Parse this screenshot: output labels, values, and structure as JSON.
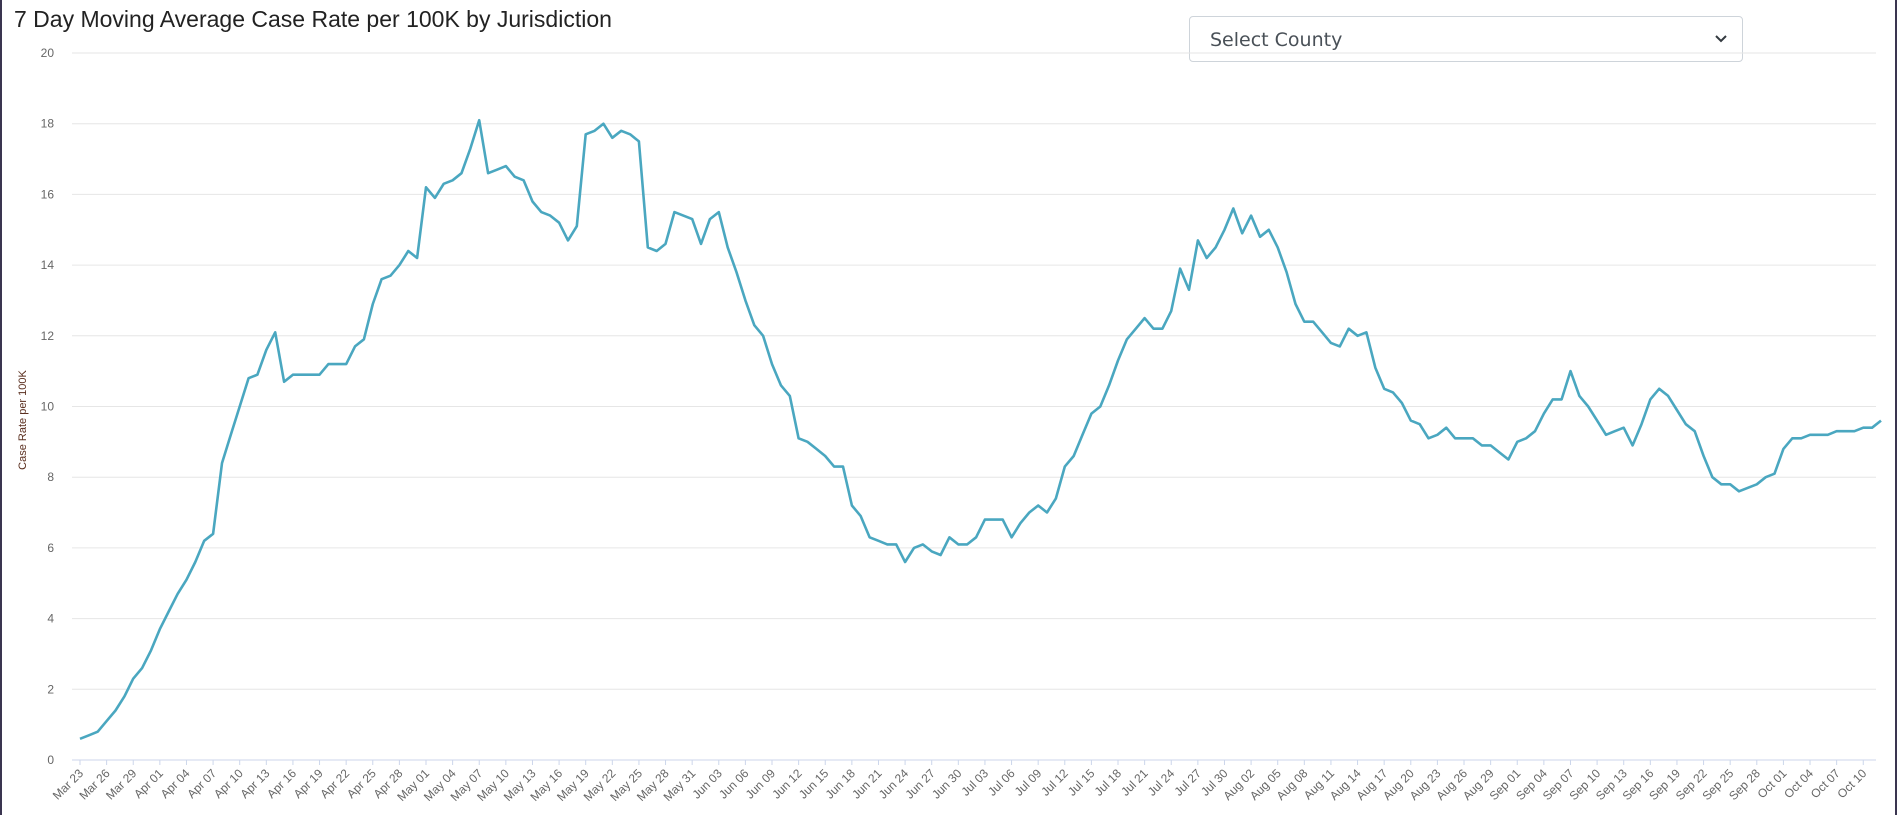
{
  "title": "7 Day Moving Average Case Rate per 100K by Jurisdiction",
  "select": {
    "selected": "Select County"
  },
  "colors": {
    "line": "#4aa7c0",
    "grid": "#e6e6e6"
  },
  "chart_data": {
    "type": "line",
    "title": "7 Day Moving Average Case Rate per 100K by Jurisdiction",
    "xlabel": "",
    "ylabel": "Case Rate per 100K",
    "ylim": [
      0,
      20
    ],
    "yticks": [
      "0",
      "2",
      "4",
      "6",
      "8",
      "10",
      "12",
      "14",
      "16",
      "18",
      "20"
    ],
    "grid": true,
    "x_start": "Mar 23",
    "x_end": "Oct 12",
    "tick_every_days": 3,
    "xtick_labels": [
      "Mar 23",
      "Mar 26",
      "Mar 29",
      "Apr 01",
      "Apr 04",
      "Apr 07",
      "Apr 10",
      "Apr 13",
      "Apr 16",
      "Apr 19",
      "Apr 22",
      "Apr 25",
      "Apr 28",
      "May 01",
      "May 04",
      "May 07",
      "May 10",
      "May 13",
      "May 16",
      "May 19",
      "May 22",
      "May 25",
      "May 28",
      "May 31",
      "Jun 03",
      "Jun 06",
      "Jun 09",
      "Jun 12",
      "Jun 15",
      "Jun 18",
      "Jun 21",
      "Jun 24",
      "Jun 27",
      "Jun 30",
      "Jul 03",
      "Jul 06",
      "Jul 09",
      "Jul 12",
      "Jul 15",
      "Jul 18",
      "Jul 21",
      "Jul 24",
      "Jul 27",
      "Jul 30",
      "Aug 02",
      "Aug 05",
      "Aug 08",
      "Aug 11",
      "Aug 14",
      "Aug 17",
      "Aug 20",
      "Aug 23",
      "Aug 26",
      "Aug 29",
      "Sep 01",
      "Sep 04",
      "Sep 07",
      "Sep 10",
      "Sep 13",
      "Sep 16",
      "Sep 19",
      "Sep 22",
      "Sep 25",
      "Sep 28",
      "Oct 01",
      "Oct 04",
      "Oct 07",
      "Oct 10"
    ],
    "series": [
      {
        "name": "Case Rate per 100K",
        "values": [
          0.6,
          0.7,
          0.8,
          1.1,
          1.4,
          1.8,
          2.3,
          2.6,
          3.1,
          3.7,
          4.2,
          4.7,
          5.1,
          5.6,
          6.2,
          6.4,
          8.4,
          9.2,
          10.0,
          10.8,
          10.9,
          11.6,
          12.1,
          10.7,
          10.9,
          10.9,
          10.9,
          10.9,
          11.2,
          11.2,
          11.2,
          11.7,
          11.9,
          12.9,
          13.6,
          13.7,
          14.0,
          14.4,
          14.2,
          16.2,
          15.9,
          16.3,
          16.4,
          16.6,
          17.3,
          18.1,
          16.6,
          16.7,
          16.8,
          16.5,
          16.4,
          15.8,
          15.5,
          15.4,
          15.2,
          14.7,
          15.1,
          17.7,
          17.8,
          18.0,
          17.6,
          17.8,
          17.7,
          17.5,
          14.5,
          14.4,
          14.6,
          15.5,
          15.4,
          15.3,
          14.6,
          15.3,
          15.5,
          14.5,
          13.8,
          13.0,
          12.3,
          12.0,
          11.2,
          10.6,
          10.3,
          9.1,
          9.0,
          8.8,
          8.6,
          8.3,
          8.3,
          7.2,
          6.9,
          6.3,
          6.2,
          6.1,
          6.1,
          5.6,
          6.0,
          6.1,
          5.9,
          5.8,
          6.3,
          6.1,
          6.1,
          6.3,
          6.8,
          6.8,
          6.8,
          6.3,
          6.7,
          7.0,
          7.2,
          7.0,
          7.4,
          8.3,
          8.6,
          9.2,
          9.8,
          10.0,
          10.6,
          11.3,
          11.9,
          12.2,
          12.5,
          12.2,
          12.2,
          12.7,
          13.9,
          13.3,
          14.7,
          14.2,
          14.5,
          15.0,
          15.6,
          14.9,
          15.4,
          14.8,
          15.0,
          14.5,
          13.8,
          12.9,
          12.4,
          12.4,
          12.1,
          11.8,
          11.7,
          12.2,
          12.0,
          12.1,
          11.1,
          10.5,
          10.4,
          10.1,
          9.6,
          9.5,
          9.1,
          9.2,
          9.4,
          9.1,
          9.1,
          9.1,
          8.9,
          8.9,
          8.7,
          8.5,
          9.0,
          9.1,
          9.3,
          9.8,
          10.2,
          10.2,
          11.0,
          10.3,
          10.0,
          9.6,
          9.2,
          9.3,
          9.4,
          8.9,
          9.5,
          10.2,
          10.5,
          10.3,
          9.9,
          9.5,
          9.3,
          8.6,
          8.0,
          7.8,
          7.8,
          7.6,
          7.7,
          7.8,
          8.0,
          8.1,
          8.8,
          9.1,
          9.1,
          9.2,
          9.2,
          9.2,
          9.3,
          9.3,
          9.3,
          9.4,
          9.4,
          9.6
        ]
      }
    ],
    "legend": "none"
  }
}
